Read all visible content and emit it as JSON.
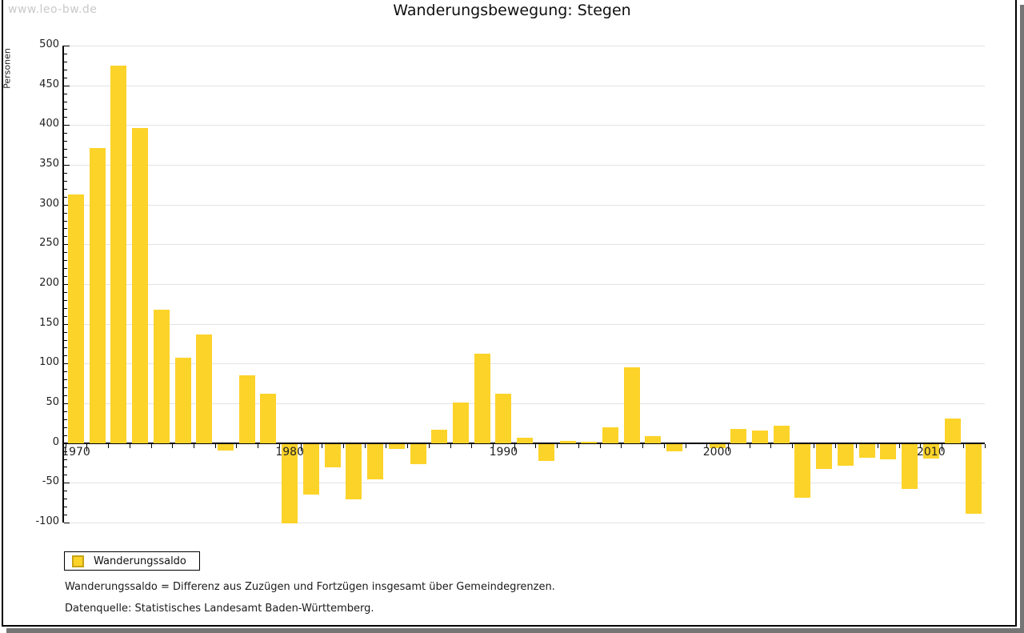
{
  "watermark": "www.leo-bw.de",
  "title": "Wanderungsbewegung: Stegen",
  "legend": {
    "label": "Wanderungssaldo"
  },
  "footnotes": [
    "Wanderungssaldo = Differenz aus Zuzügen und Fortzügen insgesamt über Gemeindegrenzen.",
    "Datenquelle: Statistisches Landesamt Baden-Württemberg."
  ],
  "colors": {
    "bar": "#FCD329",
    "bar_border": "#C8A413",
    "grid": "#E3E3E3",
    "axis": "#000000",
    "watermark": "#C9C9C9",
    "frame_shadow": "#757575"
  },
  "chart_data": {
    "type": "bar",
    "title": "Wanderungsbewegung: Stegen",
    "xlabel": "",
    "ylabel": "Personen",
    "series_name": "Wanderungssaldo",
    "ylim": [
      -100,
      500
    ],
    "ytick_major_interval": 50,
    "ytick_minor_interval": 10,
    "grid": true,
    "legend_position": "bottom-left",
    "decade_tick_labels": [
      "1970",
      "1980",
      "1990",
      "2000",
      "2010"
    ],
    "categories": [
      1970,
      1971,
      1972,
      1973,
      1974,
      1975,
      1976,
      1977,
      1978,
      1979,
      1980,
      1981,
      1982,
      1983,
      1984,
      1985,
      1986,
      1987,
      1988,
      1989,
      1990,
      1991,
      1992,
      1993,
      1994,
      1995,
      1996,
      1997,
      1998,
      1999,
      2000,
      2001,
      2002,
      2003,
      2004,
      2005,
      2006,
      2007,
      2008,
      2009,
      2010,
      2011,
      2012
    ],
    "values": [
      313,
      371,
      475,
      396,
      168,
      107,
      137,
      -8,
      85,
      62,
      -100,
      -63,
      -29,
      -70,
      -44,
      -6,
      -25,
      17,
      51,
      112,
      62,
      7,
      -21,
      3,
      2,
      20,
      95,
      9,
      -9,
      0,
      -5,
      18,
      16,
      22,
      -68,
      -31,
      -27,
      -17,
      -19,
      -56,
      -18,
      31,
      -88
    ]
  }
}
